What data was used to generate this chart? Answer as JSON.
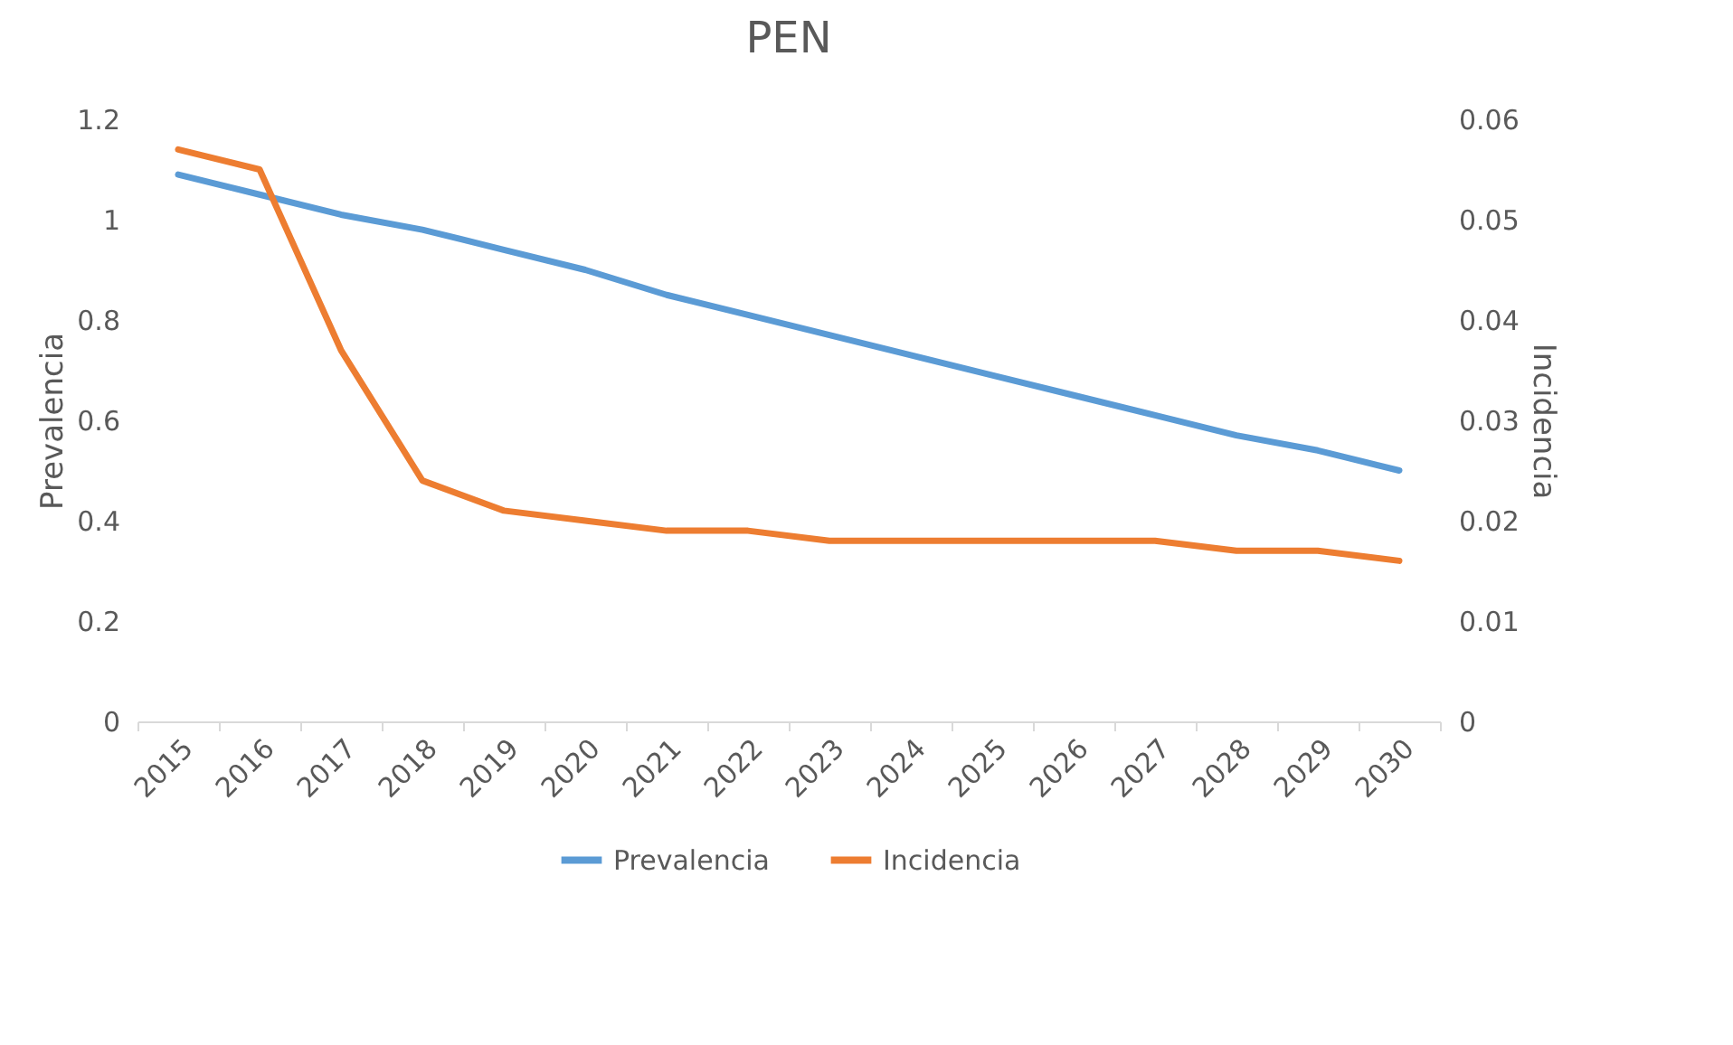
{
  "chart_data": {
    "type": "line",
    "title": "PEN",
    "ylabel": "Prevalencia",
    "y2label": "Incidencia",
    "categories": [
      "2015",
      "2016",
      "2017",
      "2018",
      "2019",
      "2020",
      "2021",
      "2022",
      "2023",
      "2024",
      "2025",
      "2026",
      "2027",
      "2028",
      "2029",
      "2030"
    ],
    "series": [
      {
        "name": "Prevalencia",
        "color": "#5b9bd5",
        "values": [
          1.09,
          1.05,
          1.01,
          0.98,
          0.94,
          0.9,
          0.85,
          0.81,
          0.77,
          0.73,
          0.69,
          0.65,
          0.61,
          0.57,
          0.54,
          0.5
        ]
      },
      {
        "name": "Incidencia",
        "color": "#ed7d31",
        "axis": "y2",
        "values": [
          0.057,
          0.055,
          0.037,
          0.024,
          0.021,
          0.02,
          0.019,
          0.019,
          0.018,
          0.018,
          0.018,
          0.018,
          0.018,
          0.017,
          0.017,
          0.016
        ]
      }
    ],
    "ylim": [
      0,
      1.2
    ],
    "yticks": [
      0,
      0.2,
      0.4,
      0.6,
      0.8,
      1,
      1.2
    ],
    "y2lim": [
      0,
      0.06
    ],
    "y2ticks": [
      0,
      0.01,
      0.02,
      0.03,
      0.04,
      0.05,
      0.06
    ],
    "grid": false,
    "legend": "bottom",
    "marker": "none",
    "line_style": "solid"
  }
}
